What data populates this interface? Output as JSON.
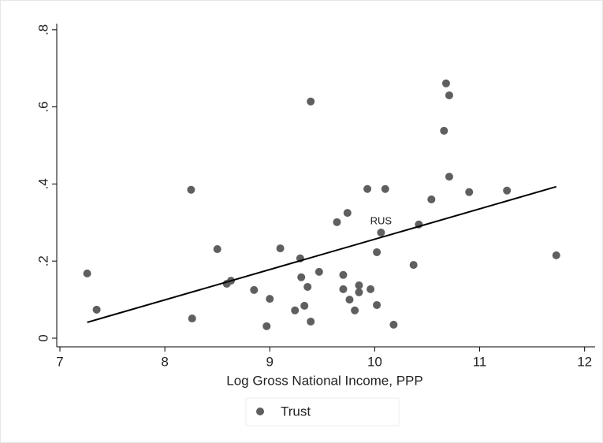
{
  "chart_data": {
    "type": "scatter",
    "x_label": "Log Gross National Income, PPP",
    "xlim": [
      6.97,
      12.1
    ],
    "ylim": [
      -0.0225,
      0.816
    ],
    "xticks": [
      7,
      8,
      9,
      10,
      11,
      12
    ],
    "yticks": [
      {
        "value": 0,
        "label": "0"
      },
      {
        "value": 0.2,
        "label": ".2"
      },
      {
        "value": 0.4,
        "label": ".4"
      },
      {
        "value": 0.6,
        "label": ".6"
      },
      {
        "value": 0.8,
        "label": ".8"
      }
    ],
    "series": [
      {
        "name": "Trust",
        "color": "#5f5f5f",
        "x": [
          7.26,
          7.35,
          8.25,
          8.26,
          8.5,
          8.59,
          8.63,
          8.85,
          8.97,
          9.0,
          9.1,
          9.24,
          9.29,
          9.3,
          9.33,
          9.36,
          9.39,
          9.39,
          9.47,
          9.64,
          9.7,
          9.7,
          9.74,
          9.76,
          9.81,
          9.85,
          9.85,
          9.93,
          9.96,
          10.02,
          10.02,
          10.06,
          10.1,
          10.18,
          10.37,
          10.42,
          10.54,
          10.66,
          10.68,
          10.71,
          10.71,
          10.9,
          11.26,
          11.73
        ],
        "values": [
          0.168,
          0.074,
          0.385,
          0.051,
          0.231,
          0.141,
          0.149,
          0.125,
          0.031,
          0.102,
          0.233,
          0.072,
          0.207,
          0.158,
          0.084,
          0.133,
          0.043,
          0.614,
          0.172,
          0.301,
          0.164,
          0.127,
          0.325,
          0.1,
          0.072,
          0.137,
          0.119,
          0.387,
          0.127,
          0.223,
          0.086,
          0.274,
          0.387,
          0.035,
          0.19,
          0.295,
          0.36,
          0.538,
          0.661,
          0.63,
          0.419,
          0.379,
          0.383,
          0.215
        ],
        "point_labels": [
          null,
          null,
          null,
          null,
          null,
          null,
          null,
          null,
          null,
          null,
          null,
          null,
          null,
          null,
          null,
          null,
          null,
          null,
          null,
          null,
          null,
          null,
          null,
          null,
          null,
          null,
          null,
          null,
          null,
          null,
          null,
          "RUS",
          null,
          null,
          null,
          null,
          null,
          null,
          null,
          null,
          null,
          null,
          null,
          null
        ]
      }
    ],
    "fit": {
      "color": "#000000",
      "x": [
        7.26,
        11.73
      ],
      "values": [
        0.041,
        0.393
      ]
    }
  }
}
